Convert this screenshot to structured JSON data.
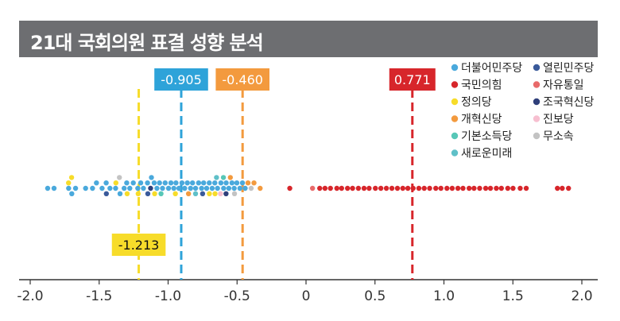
{
  "title": "21대 국회의원 표결 성향 분석",
  "chart_data": {
    "type": "scatter",
    "subtype": "beeswarm",
    "title": "21대 국회의원 표결 성향 분석",
    "xlim": [
      -2.0,
      2.0
    ],
    "x_ticks": [
      "-2.0",
      "-1.5",
      "-1.0",
      "-0.5",
      "0",
      "0.5",
      "1.0",
      "1.5",
      "2.0"
    ],
    "x_tick_values": [
      -2.0,
      -1.5,
      -1.0,
      -0.5,
      0,
      0.5,
      1.0,
      1.5,
      2.0
    ],
    "grid": false,
    "legend_position": "top-right",
    "parties": [
      {
        "name": "더불어민주당",
        "color": "#4aa9dc"
      },
      {
        "name": "열린민주당",
        "color": "#3a5a9a"
      },
      {
        "name": "국민의힘",
        "color": "#d7262b"
      },
      {
        "name": "자유통일",
        "color": "#e86a6a"
      },
      {
        "name": "정의당",
        "color": "#f7dc2a"
      },
      {
        "name": "조국혁신당",
        "color": "#2f3f7a"
      },
      {
        "name": "개혁신당",
        "color": "#f39a3e"
      },
      {
        "name": "진보당",
        "color": "#f7bfd0"
      },
      {
        "name": "기본소득당",
        "color": "#57c7b7"
      },
      {
        "name": "무소속",
        "color": "#c3c3c3"
      },
      {
        "name": "새로운미래",
        "color": "#5fc0c8"
      }
    ],
    "reference_lines": [
      {
        "value": -1.213,
        "label": "-1.213",
        "color": "#f7dc2a",
        "label_position": "bottom"
      },
      {
        "value": -0.905,
        "label": "-0.905",
        "color": "#2ea3d9",
        "label_position": "top"
      },
      {
        "value": -0.46,
        "label": "-0.460",
        "color": "#f39a3e",
        "label_position": "top"
      },
      {
        "value": 0.771,
        "label": "0.771",
        "color": "#d7262b",
        "label_position": "top"
      }
    ],
    "series": [
      {
        "name": "더불어민주당",
        "x": [
          -1.87,
          -1.83,
          -1.72,
          -1.7,
          -1.67,
          -1.6,
          -1.55,
          -1.52,
          -1.48,
          -1.45,
          -1.42,
          -1.38,
          -1.35,
          -1.32,
          -1.3,
          -1.28,
          -1.25,
          -1.22,
          -1.2,
          -1.18,
          -1.15,
          -1.12,
          -1.1,
          -1.08,
          -1.06,
          -1.04,
          -1.02,
          -1.0,
          -0.98,
          -0.96,
          -0.94,
          -0.92,
          -0.9,
          -0.88,
          -0.86,
          -0.84,
          -0.82,
          -0.8,
          -0.78,
          -0.76,
          -0.74,
          -0.72,
          -0.7,
          -0.68,
          -0.66,
          -0.64,
          -0.62,
          -0.6,
          -0.58,
          -0.56,
          -0.54,
          -0.52,
          -0.5,
          -0.48,
          -0.46,
          -0.44
        ]
      },
      {
        "name": "국민의힘",
        "x": [
          -0.12,
          0.1,
          0.14,
          0.18,
          0.22,
          0.26,
          0.3,
          0.34,
          0.38,
          0.42,
          0.46,
          0.5,
          0.54,
          0.58,
          0.62,
          0.66,
          0.7,
          0.74,
          0.78,
          0.82,
          0.86,
          0.9,
          0.94,
          0.98,
          1.02,
          1.06,
          1.1,
          1.14,
          1.18,
          1.22,
          1.26,
          1.3,
          1.34,
          1.38,
          1.42,
          1.46,
          1.5,
          1.55,
          1.6,
          1.82,
          1.86,
          1.9
        ]
      },
      {
        "name": "정의당",
        "x": [
          -1.72,
          -1.7,
          -1.38,
          -1.3,
          -1.22,
          -1.1,
          -0.95,
          -0.7,
          -0.66
        ]
      },
      {
        "name": "개혁신당",
        "x": [
          -0.85,
          -0.55,
          -0.42,
          -0.38,
          -0.33
        ]
      },
      {
        "name": "열린민주당",
        "x": [
          -1.45,
          -1.15,
          -0.75
        ]
      },
      {
        "name": "조국혁신당",
        "x": [
          -1.13,
          -0.58
        ]
      },
      {
        "name": "기본소득당",
        "x": [
          -1.05,
          -0.6
        ]
      },
      {
        "name": "새로운미래",
        "x": [
          -0.8,
          -0.65
        ]
      },
      {
        "name": "무소속",
        "x": [
          -1.35,
          -0.52,
          -0.4
        ]
      },
      {
        "name": "진보당",
        "x": [
          -0.62
        ]
      },
      {
        "name": "자유통일",
        "x": [
          0.05
        ]
      }
    ]
  }
}
